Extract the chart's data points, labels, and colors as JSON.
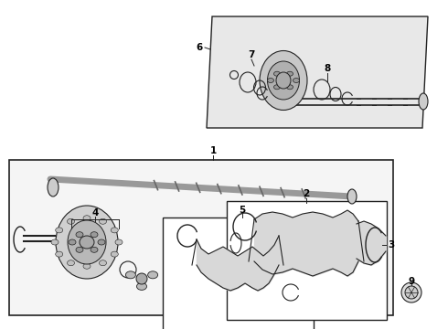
{
  "bg_color": "#ffffff",
  "line_color": "#222222",
  "panel_fill": "#e8e8e8",
  "box_fill": "#f0f0f0",
  "shaft_color": "#888888",
  "part_fill": "#cccccc",
  "boot_fill": "#d8d8d8"
}
